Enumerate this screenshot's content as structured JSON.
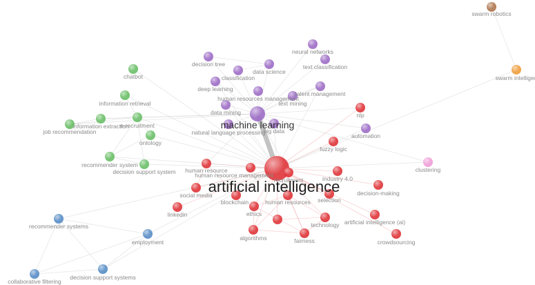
{
  "clusters": {
    "red": "#e0393e",
    "purple": "#a070c8",
    "green": "#6cc06a",
    "blue": "#5b8fc8",
    "orange": "#f0a040",
    "brown": "#b07850",
    "pink": "#f0a0d8"
  },
  "nodes": [
    {
      "id": "artificial-intelligence",
      "label": "artificial intelligence",
      "cluster": "red",
      "size": 3
    },
    {
      "id": "recruitment",
      "label": "recruitment",
      "cluster": "red",
      "size": 1
    },
    {
      "id": "human-resource-management",
      "label": "human resource management",
      "cluster": "red",
      "size": 1
    },
    {
      "id": "human-resource",
      "label": "human resource",
      "cluster": "red",
      "size": 1
    },
    {
      "id": "social-media",
      "label": "social media",
      "cluster": "red",
      "size": 1
    },
    {
      "id": "blockchain",
      "label": "blockchain",
      "cluster": "red",
      "size": 1
    },
    {
      "id": "human-resources",
      "label": "human resources",
      "cluster": "red",
      "size": 1
    },
    {
      "id": "selection",
      "label": "selection",
      "cluster": "red",
      "size": 1
    },
    {
      "id": "industry-4-0",
      "label": "industry 4.0",
      "cluster": "red",
      "size": 1
    },
    {
      "id": "decision-making",
      "label": "decision-making",
      "cluster": "red",
      "size": 1
    },
    {
      "id": "linkedin",
      "label": "linkedin",
      "cluster": "red",
      "size": 1
    },
    {
      "id": "ethics",
      "label": "ethics",
      "cluster": "red",
      "size": 1
    },
    {
      "id": "technology",
      "label": "technology",
      "cluster": "red",
      "size": 1
    },
    {
      "id": "artificial-intelligence-ai",
      "label": "artificial intelligence (ai)",
      "cluster": "red",
      "size": 1
    },
    {
      "id": "algorithms",
      "label": "algorithms",
      "cluster": "red",
      "size": 1
    },
    {
      "id": "fairness",
      "label": "fairness",
      "cluster": "red",
      "size": 1
    },
    {
      "id": "crowdsourcing",
      "label": "crowdsourcing",
      "cluster": "red",
      "size": 1
    },
    {
      "id": "fuzzy-logic",
      "label": "fuzzy logic",
      "cluster": "red",
      "size": 1
    },
    {
      "id": "nlp",
      "label": "nlp",
      "cluster": "red",
      "size": 1
    },
    {
      "id": "unlabeled-red",
      "label": "",
      "cluster": "red",
      "size": 1
    },
    {
      "id": "machine-learning",
      "label": "machine learning",
      "cluster": "purple",
      "size": 2
    },
    {
      "id": "neural-networks",
      "label": "neural networks",
      "cluster": "purple",
      "size": 1
    },
    {
      "id": "text-classification",
      "label": "text classification",
      "cluster": "purple",
      "size": 1
    },
    {
      "id": "decision-tree",
      "label": "decision tree",
      "cluster": "purple",
      "size": 1
    },
    {
      "id": "data-science",
      "label": "data science",
      "cluster": "purple",
      "size": 1
    },
    {
      "id": "classification",
      "label": "classification",
      "cluster": "purple",
      "size": 1
    },
    {
      "id": "deep-learning",
      "label": "deep learning",
      "cluster": "purple",
      "size": 1
    },
    {
      "id": "talent-management",
      "label": "talent management",
      "cluster": "purple",
      "size": 1
    },
    {
      "id": "human-resources-management",
      "label": "human resources management",
      "cluster": "purple",
      "size": 1
    },
    {
      "id": "text-mining",
      "label": "text mining",
      "cluster": "purple",
      "size": 1
    },
    {
      "id": "data-mining",
      "label": "data mining",
      "cluster": "purple",
      "size": 1
    },
    {
      "id": "natural-language-processing",
      "label": "natural language processing",
      "cluster": "purple",
      "size": 1
    },
    {
      "id": "big-data",
      "label": "big data",
      "cluster": "purple",
      "size": 1
    },
    {
      "id": "automation",
      "label": "automation",
      "cluster": "purple",
      "size": 1
    },
    {
      "id": "chatbot",
      "label": "chatbot",
      "cluster": "green",
      "size": 1
    },
    {
      "id": "information-retrieval",
      "label": "information retrieval",
      "cluster": "green",
      "size": 1
    },
    {
      "id": "information-extraction",
      "label": "information extraction",
      "cluster": "green",
      "size": 1
    },
    {
      "id": "e-recruitment",
      "label": "e-recruitment",
      "cluster": "green",
      "size": 1
    },
    {
      "id": "job-recommendation",
      "label": "job recommendation",
      "cluster": "green",
      "size": 1
    },
    {
      "id": "ontology",
      "label": "ontology",
      "cluster": "green",
      "size": 1
    },
    {
      "id": "recommender-system",
      "label": "recommender system",
      "cluster": "green",
      "size": 1
    },
    {
      "id": "decision-support-system",
      "label": "decision support system",
      "cluster": "green",
      "size": 1
    },
    {
      "id": "recommender-systems",
      "label": "recommender systems",
      "cluster": "blue",
      "size": 1
    },
    {
      "id": "employment",
      "label": "employment",
      "cluster": "blue",
      "size": 1
    },
    {
      "id": "collaborative-filtering",
      "label": "collaborative filtering",
      "cluster": "blue",
      "size": 1
    },
    {
      "id": "decision-support-systems",
      "label": "decision support systems",
      "cluster": "blue",
      "size": 1
    },
    {
      "id": "swarm-robotics",
      "label": "swarm robotics",
      "cluster": "brown",
      "size": 1
    },
    {
      "id": "swarm-intelligence",
      "label": "swarm intelligen",
      "cluster": "orange",
      "size": 1
    },
    {
      "id": "clustering",
      "label": "clustering",
      "cluster": "pink",
      "size": 1
    }
  ],
  "links": [
    [
      "artificial-intelligence",
      "machine-learning"
    ],
    [
      "artificial-intelligence",
      "recruitment"
    ],
    [
      "artificial-intelligence",
      "human-resource-management"
    ],
    [
      "artificial-intelligence",
      "human-resource"
    ],
    [
      "artificial-intelligence",
      "social-media"
    ],
    [
      "artificial-intelligence",
      "blockchain"
    ],
    [
      "artificial-intelligence",
      "human-resources"
    ],
    [
      "artificial-intelligence",
      "selection"
    ],
    [
      "artificial-intelligence",
      "industry-4-0"
    ],
    [
      "artificial-intelligence",
      "decision-making"
    ],
    [
      "artificial-intelligence",
      "linkedin"
    ],
    [
      "artificial-intelligence",
      "ethics"
    ],
    [
      "artificial-intelligence",
      "technology"
    ],
    [
      "artificial-intelligence",
      "artificial-intelligence-ai"
    ],
    [
      "artificial-intelligence",
      "algorithms"
    ],
    [
      "artificial-intelligence",
      "fairness"
    ],
    [
      "artificial-intelligence",
      "crowdsourcing"
    ],
    [
      "artificial-intelligence",
      "fuzzy-logic"
    ],
    [
      "artificial-intelligence",
      "nlp"
    ],
    [
      "artificial-intelligence",
      "unlabeled-red"
    ],
    [
      "artificial-intelligence",
      "automation"
    ],
    [
      "artificial-intelligence",
      "clustering"
    ],
    [
      "artificial-intelligence",
      "swarm-intelligence"
    ],
    [
      "artificial-intelligence",
      "e-recruitment"
    ],
    [
      "artificial-intelligence",
      "ontology"
    ],
    [
      "artificial-intelligence",
      "decision-support-system"
    ],
    [
      "artificial-intelligence",
      "recommender-system"
    ],
    [
      "artificial-intelligence",
      "employment"
    ],
    [
      "artificial-intelligence",
      "recommender-systems"
    ],
    [
      "artificial-intelligence",
      "decision-support-systems"
    ],
    [
      "artificial-intelligence",
      "deep-learning"
    ],
    [
      "artificial-intelligence",
      "data-mining"
    ],
    [
      "artificial-intelligence",
      "natural-language-processing"
    ],
    [
      "artificial-intelligence",
      "big-data"
    ],
    [
      "artificial-intelligence",
      "talent-management"
    ],
    [
      "artificial-intelligence",
      "chatbot"
    ],
    [
      "artificial-intelligence",
      "information-retrieval"
    ],
    [
      "machine-learning",
      "neural-networks"
    ],
    [
      "machine-learning",
      "text-classification"
    ],
    [
      "machine-learning",
      "decision-tree"
    ],
    [
      "machine-learning",
      "data-science"
    ],
    [
      "machine-learning",
      "classification"
    ],
    [
      "machine-learning",
      "deep-learning"
    ],
    [
      "machine-learning",
      "talent-management"
    ],
    [
      "machine-learning",
      "human-resources-management"
    ],
    [
      "machine-learning",
      "text-mining"
    ],
    [
      "machine-learning",
      "data-mining"
    ],
    [
      "machine-learning",
      "natural-language-processing"
    ],
    [
      "machine-learning",
      "big-data"
    ],
    [
      "machine-learning",
      "automation"
    ],
    [
      "machine-learning",
      "e-recruitment"
    ],
    [
      "machine-learning",
      "information-extraction"
    ],
    [
      "machine-learning",
      "job-recommendation"
    ],
    [
      "machine-learning",
      "recruitment"
    ],
    [
      "machine-learning",
      "human-resource"
    ],
    [
      "machine-learning",
      "nlp"
    ],
    [
      "machine-learning",
      "clustering"
    ],
    [
      "e-recruitment",
      "information-extraction"
    ],
    [
      "e-recruitment",
      "job-recommendation"
    ],
    [
      "e-recruitment",
      "ontology"
    ],
    [
      "e-recruitment",
      "information-retrieval"
    ],
    [
      "e-recruitment",
      "recommender-system"
    ],
    [
      "e-recruitment",
      "decision-support-system"
    ],
    [
      "information-extraction",
      "job-recommendation"
    ],
    [
      "ontology",
      "recommender-system"
    ],
    [
      "recommender-system",
      "decision-support-system"
    ],
    [
      "recommender-systems",
      "employment"
    ],
    [
      "recommender-systems",
      "collaborative-filtering"
    ],
    [
      "recommender-systems",
      "decision-support-systems"
    ],
    [
      "employment",
      "collaborative-filtering"
    ],
    [
      "employment",
      "decision-support-systems"
    ],
    [
      "collaborative-filtering",
      "decision-support-systems"
    ],
    [
      "swarm-robotics",
      "swarm-intelligence"
    ],
    [
      "recruitment",
      "selection"
    ],
    [
      "recruitment",
      "human-resources"
    ],
    [
      "human-resources",
      "ethics"
    ],
    [
      "human-resources",
      "algorithms"
    ],
    [
      "human-resources",
      "fairness"
    ],
    [
      "human-resources",
      "technology"
    ],
    [
      "ethics",
      "algorithms"
    ],
    [
      "ethics",
      "fairness"
    ],
    [
      "algorithms",
      "fairness"
    ],
    [
      "fairness",
      "technology"
    ],
    [
      "technology",
      "unlabeled-red"
    ],
    [
      "human-resource",
      "social-media"
    ],
    [
      "human-resource",
      "blockchain"
    ],
    [
      "decision-tree",
      "data-science"
    ],
    [
      "neural-networks",
      "text-classification"
    ],
    [
      "classification",
      "data-science"
    ],
    [
      "text-mining",
      "talent-management"
    ]
  ]
}
